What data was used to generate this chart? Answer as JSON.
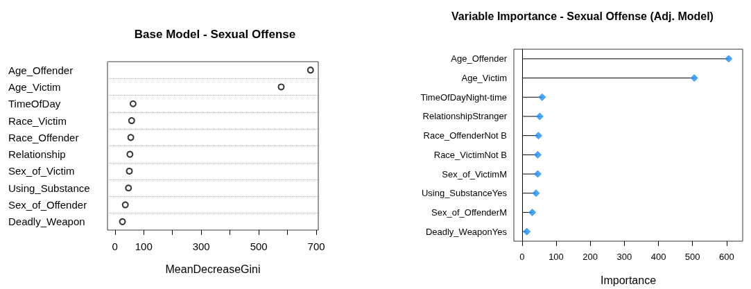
{
  "chart_data": [
    {
      "type": "scatter",
      "title": "Base Model - Sexual Offense",
      "xlabel": "MeanDecreaseGini",
      "orientation": "horizontal",
      "categories": [
        "Age_Offender",
        "Age_Victim",
        "TimeOfDay",
        "Race_Victim",
        "Race_Offender",
        "Relationship",
        "Sex_of_Victim",
        "Using_Substance",
        "Sex_of_Offender",
        "Deadly_Weapon"
      ],
      "series": [
        {
          "color": "#000000",
          "values": [
            680,
            578,
            63,
            58,
            55,
            52,
            50,
            47,
            36,
            26
          ]
        }
      ],
      "xlim": [
        -26,
        707
      ],
      "xticks": [
        0,
        100,
        {
          "value": 200,
          "label": null
        },
        300,
        {
          "value": 400,
          "label": null
        },
        500,
        {
          "value": 600,
          "label": null
        },
        700
      ],
      "grid": "y",
      "line_style": "dotted",
      "marker": "circle"
    },
    {
      "type": "lollipop",
      "title": "Variable Importance - Sexual Offense (Adj. Model)",
      "xlabel": "Importance",
      "orientation": "horizontal",
      "categories": [
        "Age_Offender",
        "Age_Victim",
        "TimeOfDayNight-time",
        "RelationshipStranger",
        "Race_OffenderNot B",
        "Race_VictimNot B",
        "Sex_of_VictimM",
        "Using_SubstanceYes",
        "Sex_of_OffenderM",
        "Deadly_WeaponYes"
      ],
      "series": [
        {
          "color": "#1e90ff",
          "values": [
            606,
            505,
            59,
            52,
            48,
            46,
            46,
            41,
            30,
            14
          ]
        }
      ],
      "xlim": [
        -24,
        647
      ],
      "xticks": [
        0,
        100,
        200,
        300,
        400,
        500,
        600
      ],
      "ref_lines": [
        {
          "axis": "x",
          "value": 0,
          "color": "#000000"
        }
      ],
      "marker": "diamond",
      "grid": false
    }
  ]
}
